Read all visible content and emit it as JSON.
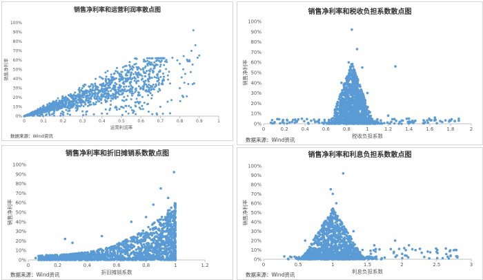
{
  "chart_data": [
    {
      "type": "scatter",
      "title": "销售净利率和运营利润率散点图",
      "xlabel": "运营利润率",
      "ylabel": "销售净利率",
      "x_ticks": [
        "0",
        "0.1",
        "0.2",
        "0.3",
        "0.4",
        "0.5",
        "0.6",
        "0.7",
        "0.8",
        "0.9",
        "1"
      ],
      "y_ticks": [
        "0%",
        "10%",
        "20%",
        "30%",
        "40%",
        "50%",
        "60%",
        "70%",
        "80%",
        "90%",
        "100%"
      ],
      "xlim": [
        0,
        1
      ],
      "ylim": [
        0,
        1
      ],
      "source": "数据来源：Wind资讯",
      "color": "#5b9bd5",
      "description_points": [
        [
          0.02,
          0.01
        ],
        [
          0.05,
          0.03
        ],
        [
          0.1,
          0.06
        ],
        [
          0.15,
          0.1
        ],
        [
          0.2,
          0.14
        ],
        [
          0.25,
          0.19
        ],
        [
          0.3,
          0.24
        ],
        [
          0.35,
          0.28
        ],
        [
          0.4,
          0.32
        ],
        [
          0.45,
          0.36
        ],
        [
          0.5,
          0.42
        ],
        [
          0.55,
          0.46
        ],
        [
          0.6,
          0.5
        ],
        [
          0.65,
          0.55
        ],
        [
          0.7,
          0.58
        ],
        [
          0.75,
          0.35
        ],
        [
          0.8,
          0.3
        ],
        [
          0.85,
          0.6
        ],
        [
          0.86,
          0.7
        ],
        [
          0.87,
          0.92
        ],
        [
          0.88,
          0.76
        ],
        [
          0.9,
          0.65
        ],
        [
          0.6,
          0.3
        ],
        [
          0.7,
          0.1
        ],
        [
          0.75,
          0.03
        ]
      ]
    },
    {
      "type": "scatter",
      "title": "销售净利率和税收负担系数散点图",
      "xlabel": "税收负担系数",
      "ylabel": "销售净利率",
      "x_ticks": [
        "0",
        "0.2",
        "0.4",
        "0.6",
        "0.8",
        "1",
        "1.2",
        "1.4",
        "1.6",
        "1.8",
        "2"
      ],
      "y_ticks": [
        "0%",
        "10%",
        "20%",
        "30%",
        "40%",
        "50%",
        "60%",
        "70%",
        "80%",
        "90%",
        "100%"
      ],
      "xlim": [
        0,
        2
      ],
      "ylim": [
        0,
        1
      ],
      "source": "数据来源：Wind资讯",
      "color": "#5b9bd5",
      "description_points": [
        [
          0.85,
          0.92
        ],
        [
          0.9,
          0.73
        ],
        [
          0.82,
          0.6
        ],
        [
          0.95,
          0.55
        ],
        [
          1.27,
          0.56
        ],
        [
          0.75,
          0.4
        ],
        [
          1.0,
          0.3
        ],
        [
          1.2,
          0.08
        ],
        [
          1.4,
          0.05
        ],
        [
          1.6,
          0.04
        ],
        [
          1.65,
          0.06
        ],
        [
          1.8,
          0.03
        ],
        [
          1.88,
          0.03
        ],
        [
          0.3,
          0.01
        ],
        [
          0.5,
          0.02
        ],
        [
          0.07,
          0.01
        ]
      ]
    },
    {
      "type": "scatter",
      "title": "销售净利率和折旧摊销系数散点图",
      "xlabel": "折旧摊销系数",
      "ylabel": "销售净利率",
      "x_ticks": [
        "0",
        "0.2",
        "0.4",
        "0.6",
        "0.8",
        "1",
        "1.2"
      ],
      "y_ticks": [
        "0%",
        "10%",
        "20%",
        "30%",
        "40%",
        "50%",
        "60%",
        "70%",
        "80%",
        "90%",
        "100%"
      ],
      "xlim": [
        0,
        1.2
      ],
      "ylim": [
        0,
        1
      ],
      "source": "数据来源：Wind资讯",
      "color": "#5b9bd5",
      "description_points": [
        [
          0.99,
          0.92
        ],
        [
          0.9,
          0.75
        ],
        [
          0.95,
          0.65
        ],
        [
          0.85,
          0.58
        ],
        [
          0.7,
          0.4
        ],
        [
          0.5,
          0.25
        ],
        [
          0.3,
          0.18
        ],
        [
          0.25,
          0.22
        ],
        [
          0.1,
          0.03
        ],
        [
          0.05,
          0.02
        ],
        [
          0.98,
          0.5
        ],
        [
          0.8,
          0.45
        ]
      ]
    },
    {
      "type": "scatter",
      "title": "销售净利率和利息负担系数散点图",
      "xlabel": "利息负担系数",
      "ylabel": "销售净利率",
      "x_ticks": [
        "0",
        "0.5",
        "1",
        "1.5",
        "2",
        "2.5",
        "3"
      ],
      "y_ticks": [
        "0%",
        "10%",
        "20%",
        "30%",
        "40%",
        "50%",
        "60%",
        "70%",
        "80%",
        "90%",
        "100%"
      ],
      "xlim": [
        0,
        3
      ],
      "ylim": [
        0,
        1
      ],
      "source": "数据来源：Wind资讯",
      "color": "#5b9bd5",
      "description_points": [
        [
          1.15,
          0.92
        ],
        [
          0.97,
          0.75
        ],
        [
          1.0,
          0.7
        ],
        [
          1.05,
          0.6
        ],
        [
          1.3,
          0.3
        ],
        [
          1.6,
          0.15
        ],
        [
          2.1,
          0.15
        ],
        [
          2.5,
          0.08
        ],
        [
          2.8,
          0.03
        ],
        [
          1.9,
          0.2
        ],
        [
          0.6,
          0.2
        ],
        [
          0.3,
          0.03
        ]
      ]
    }
  ]
}
